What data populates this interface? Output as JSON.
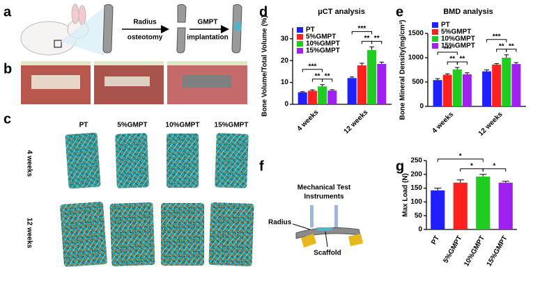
{
  "panel_labels": [
    "a",
    "b",
    "c",
    "d",
    "e",
    "f",
    "g"
  ],
  "panel_a": {
    "steps": [
      [
        "Radius",
        "osteotomy"
      ],
      [
        "GMPT",
        "implantation"
      ]
    ]
  },
  "panel_c": {
    "columns": [
      "PT",
      "5%GMPT",
      "10%GMPT",
      "15%GMPT"
    ],
    "rows": [
      "4 weeks",
      "12 weeks"
    ]
  },
  "panel_f": {
    "instrument": [
      "Mechanical Test",
      "Instruments"
    ],
    "radius": "Radius",
    "scaffold": "Scaffold"
  },
  "chart_data": [
    {
      "type": "bar",
      "title": "μCT analysis",
      "y_label": "Bone Volume/Total Volume (%)",
      "categories": [
        "4 weeks",
        "12 weeks"
      ],
      "series": [
        {
          "name": "PT",
          "color": "#1f1fff",
          "values": [
            5.5,
            12
          ],
          "errors": [
            0.3,
            0.5
          ]
        },
        {
          "name": "5%GMPT",
          "color": "#ff1f1f",
          "values": [
            6.2,
            17.8
          ],
          "errors": [
            0.4,
            1.0
          ]
        },
        {
          "name": "10%GMPT",
          "color": "#1fcc1f",
          "values": [
            8.2,
            24.8
          ],
          "errors": [
            0.8,
            1.5
          ]
        },
        {
          "name": "15%GMPT",
          "color": "#a020f0",
          "values": [
            6.3,
            18.5
          ],
          "errors": [
            0.4,
            0.8
          ]
        }
      ],
      "significance": [
        "***",
        "**",
        "**",
        "***",
        "**",
        "**"
      ],
      "ylim": [
        0,
        35
      ],
      "yticks": [
        0,
        10,
        20,
        30
      ],
      "legend": "top-left"
    },
    {
      "type": "bar",
      "title": "BMD analysis",
      "y_label": "Bone Mineral Density(mg/cm³)",
      "categories": [
        "4 weeks",
        "12 weeks"
      ],
      "series": [
        {
          "name": "PT",
          "color": "#1f1fff",
          "values": [
            540,
            720
          ],
          "errors": [
            30,
            30
          ]
        },
        {
          "name": "5%GMPT",
          "color": "#ff1f1f",
          "values": [
            650,
            860
          ],
          "errors": [
            20,
            20
          ]
        },
        {
          "name": "10%GMPT",
          "color": "#1fcc1f",
          "values": [
            760,
            1000
          ],
          "errors": [
            40,
            60
          ]
        },
        {
          "name": "15%GMPT",
          "color": "#a020f0",
          "values": [
            660,
            870
          ],
          "errors": [
            30,
            30
          ]
        }
      ],
      "significance": [
        "***",
        "**",
        "**",
        "***",
        "**",
        "**"
      ],
      "ylim": [
        0,
        1500
      ],
      "yticks": [
        0,
        500,
        1000,
        1500
      ],
      "legend": "top-left"
    },
    {
      "type": "bar",
      "y_label": "Max Load (N)",
      "categories": [
        "PT",
        "5%GMPT",
        "10%GMPT",
        "15%GMPT"
      ],
      "values": [
        142,
        170,
        192,
        170
      ],
      "errors": [
        8,
        10,
        8,
        5
      ],
      "colors": [
        "#1f1fff",
        "#ff1f1f",
        "#1fcc1f",
        "#a020f0"
      ],
      "significance": [
        "*",
        "*",
        "*"
      ],
      "ylim": [
        0,
        250
      ],
      "yticks": [
        0,
        50,
        100,
        150,
        200,
        250
      ]
    }
  ]
}
